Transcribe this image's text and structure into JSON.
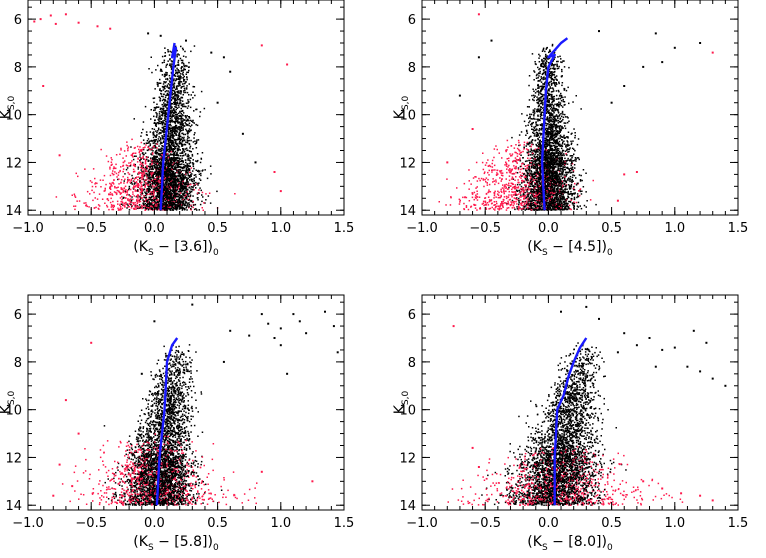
{
  "colors": {
    "giants": "#000000",
    "agb_candidates": "#ff1a4d",
    "isochrone": "#1a1aff"
  },
  "chart_data": [
    {
      "type": "scatter",
      "xlabel": {
        "open": "(K",
        "sub": "S",
        "middle": " − [3.6])",
        "close_sub": "0"
      },
      "ylabel": {
        "main": "K",
        "sub": "S,0"
      },
      "xlim": [
        -1.0,
        1.5
      ],
      "ylim": [
        14.2,
        5.2
      ],
      "xticks": [
        "−1.0",
        "−0.5",
        "0.0",
        "0.5",
        "1.0",
        "1.5"
      ],
      "yticks": [
        "6",
        "8",
        "10",
        "12",
        "14"
      ],
      "grid": false,
      "cloud": {
        "center_x": 0.12,
        "spread_x": 0.09,
        "tilt": 0.015,
        "top": 7.0,
        "bottom": 14.0
      },
      "red_cloud": {
        "center_x": -0.12,
        "spread_x": 0.2,
        "top": 11.0,
        "bottom": 14.0
      },
      "red_outliers": [
        {
          "x": -0.95,
          "y": 6.1
        },
        {
          "x": -0.9,
          "y": 6.0
        },
        {
          "x": -0.82,
          "y": 5.85
        },
        {
          "x": -0.78,
          "y": 6.2
        },
        {
          "x": -0.7,
          "y": 5.8
        },
        {
          "x": -0.6,
          "y": 6.15
        },
        {
          "x": -0.45,
          "y": 6.3
        },
        {
          "x": -0.35,
          "y": 6.4
        },
        {
          "x": 1.05,
          "y": 7.9
        },
        {
          "x": 0.85,
          "y": 7.1
        },
        {
          "x": -0.88,
          "y": 8.8
        },
        {
          "x": -0.75,
          "y": 11.7
        },
        {
          "x": 0.95,
          "y": 12.4
        },
        {
          "x": 1.0,
          "y": 13.2
        }
      ],
      "black_outliers": [
        {
          "x": -0.05,
          "y": 6.6
        },
        {
          "x": 0.05,
          "y": 6.7
        },
        {
          "x": 0.25,
          "y": 6.9
        },
        {
          "x": 0.45,
          "y": 7.4
        },
        {
          "x": 0.55,
          "y": 7.6
        },
        {
          "x": 0.6,
          "y": 8.2
        },
        {
          "x": 0.5,
          "y": 9.5
        },
        {
          "x": 0.7,
          "y": 10.8
        },
        {
          "x": 0.8,
          "y": 12.0
        }
      ],
      "isochrone": [
        {
          "x": 0.05,
          "y": 14.0
        },
        {
          "x": 0.06,
          "y": 13.0
        },
        {
          "x": 0.07,
          "y": 12.0
        },
        {
          "x": 0.09,
          "y": 11.0
        },
        {
          "x": 0.11,
          "y": 10.0
        },
        {
          "x": 0.13,
          "y": 9.0
        },
        {
          "x": 0.15,
          "y": 8.0
        },
        {
          "x": 0.17,
          "y": 7.2
        },
        {
          "x": 0.14,
          "y": 7.6
        },
        {
          "x": 0.16,
          "y": 7.0
        }
      ]
    },
    {
      "type": "scatter",
      "xlabel": {
        "open": "(K",
        "sub": "S",
        "middle": " − [4.5])",
        "close_sub": "0"
      },
      "ylabel": {
        "main": "K",
        "sub": "S,0"
      },
      "xlim": [
        -1.0,
        1.5
      ],
      "ylim": [
        14.2,
        5.2
      ],
      "xticks": [
        "−1.0",
        "−0.5",
        "0.0",
        "0.5",
        "1.0",
        "1.5"
      ],
      "yticks": [
        "6",
        "8",
        "10",
        "12",
        "14"
      ],
      "grid": false,
      "cloud": {
        "center_x": 0.0,
        "spread_x": 0.08,
        "tilt": 0.0,
        "top": 7.0,
        "bottom": 14.0
      },
      "red_cloud": {
        "center_x": -0.25,
        "spread_x": 0.2,
        "top": 11.0,
        "bottom": 14.0
      },
      "red_outliers": [
        {
          "x": -0.55,
          "y": 5.8
        },
        {
          "x": -0.6,
          "y": 10.6
        },
        {
          "x": 0.6,
          "y": 12.5
        },
        {
          "x": 0.7,
          "y": 12.4
        },
        {
          "x": 1.3,
          "y": 7.4
        },
        {
          "x": -0.8,
          "y": 12.0
        },
        {
          "x": 0.55,
          "y": 13.6
        }
      ],
      "black_outliers": [
        {
          "x": 0.85,
          "y": 6.6
        },
        {
          "x": 1.0,
          "y": 7.2
        },
        {
          "x": 1.2,
          "y": 7.0
        },
        {
          "x": 0.9,
          "y": 7.8
        },
        {
          "x": 0.75,
          "y": 8.0
        },
        {
          "x": 0.4,
          "y": 6.5
        },
        {
          "x": -0.55,
          "y": 7.6
        },
        {
          "x": -0.7,
          "y": 9.2
        },
        {
          "x": -0.45,
          "y": 6.9
        },
        {
          "x": 0.6,
          "y": 8.8
        },
        {
          "x": 0.5,
          "y": 9.5
        }
      ],
      "isochrone": [
        {
          "x": -0.03,
          "y": 14.0
        },
        {
          "x": -0.04,
          "y": 13.0
        },
        {
          "x": -0.05,
          "y": 12.0
        },
        {
          "x": -0.04,
          "y": 11.0
        },
        {
          "x": -0.03,
          "y": 10.0
        },
        {
          "x": -0.02,
          "y": 9.0
        },
        {
          "x": 0.0,
          "y": 8.0
        },
        {
          "x": 0.05,
          "y": 7.5
        },
        {
          "x": 0.0,
          "y": 7.6
        },
        {
          "x": 0.1,
          "y": 7.0
        },
        {
          "x": 0.15,
          "y": 6.8
        }
      ]
    },
    {
      "type": "scatter",
      "xlabel": {
        "open": "(K",
        "sub": "S",
        "middle": " − [5.8])",
        "close_sub": "0"
      },
      "ylabel": {
        "main": "K",
        "sub": "S,0"
      },
      "xlim": [
        -1.0,
        1.5
      ],
      "ylim": [
        14.2,
        5.2
      ],
      "xticks": [
        "−1.0",
        "−0.5",
        "0.0",
        "0.5",
        "1.0",
        "1.5"
      ],
      "yticks": [
        "6",
        "8",
        "10",
        "12",
        "14"
      ],
      "grid": false,
      "cloud": {
        "center_x": 0.08,
        "spread_x": 0.1,
        "tilt": 0.03,
        "top": 7.2,
        "bottom": 14.0
      },
      "red_cloud": {
        "center_x": 0.0,
        "spread_x": 0.25,
        "top": 11.0,
        "bottom": 14.0
      },
      "red_outliers": [
        {
          "x": -0.7,
          "y": 9.6
        },
        {
          "x": -0.6,
          "y": 11.0
        },
        {
          "x": -0.75,
          "y": 12.3
        },
        {
          "x": -0.65,
          "y": 13.2
        },
        {
          "x": -0.5,
          "y": 7.2
        },
        {
          "x": 0.85,
          "y": 12.6
        },
        {
          "x": 1.25,
          "y": 13.0
        },
        {
          "x": -0.8,
          "y": 13.6
        }
      ],
      "black_outliers": [
        {
          "x": 0.85,
          "y": 6.0
        },
        {
          "x": 0.9,
          "y": 6.4
        },
        {
          "x": 1.0,
          "y": 6.6
        },
        {
          "x": 1.1,
          "y": 6.0
        },
        {
          "x": 1.2,
          "y": 6.8
        },
        {
          "x": 1.35,
          "y": 5.9
        },
        {
          "x": 1.42,
          "y": 6.5
        },
        {
          "x": 1.45,
          "y": 7.6
        },
        {
          "x": 1.0,
          "y": 7.3
        },
        {
          "x": 0.75,
          "y": 6.9
        },
        {
          "x": 0.6,
          "y": 6.7
        },
        {
          "x": 0.55,
          "y": 8.0
        },
        {
          "x": 1.05,
          "y": 8.5
        },
        {
          "x": 0.3,
          "y": 5.6
        },
        {
          "x": 0.0,
          "y": 6.3
        },
        {
          "x": -0.1,
          "y": 8.5
        },
        {
          "x": 1.15,
          "y": 6.3
        },
        {
          "x": 0.95,
          "y": 7.0
        }
      ],
      "isochrone": [
        {
          "x": 0.02,
          "y": 14.0
        },
        {
          "x": 0.03,
          "y": 13.0
        },
        {
          "x": 0.04,
          "y": 12.0
        },
        {
          "x": 0.06,
          "y": 11.0
        },
        {
          "x": 0.08,
          "y": 10.0
        },
        {
          "x": 0.09,
          "y": 9.0
        },
        {
          "x": 0.1,
          "y": 8.0
        },
        {
          "x": 0.14,
          "y": 7.3
        },
        {
          "x": 0.18,
          "y": 7.0
        }
      ]
    },
    {
      "type": "scatter",
      "xlabel": {
        "open": "(K",
        "sub": "S",
        "middle": " − [8.0])",
        "close_sub": "0"
      },
      "ylabel": {
        "main": "K",
        "sub": "S,0"
      },
      "xlim": [
        -1.0,
        1.5
      ],
      "ylim": [
        14.2,
        5.2
      ],
      "xticks": [
        "−1.0",
        "−0.5",
        "0.0",
        "0.5",
        "1.0",
        "1.5"
      ],
      "yticks": [
        "6",
        "8",
        "10",
        "12",
        "14"
      ],
      "grid": false,
      "cloud": {
        "center_x": 0.12,
        "spread_x": 0.12,
        "tilt": 0.05,
        "top": 7.2,
        "bottom": 14.0
      },
      "red_cloud": {
        "center_x": 0.1,
        "spread_x": 0.3,
        "top": 11.5,
        "bottom": 14.0
      },
      "red_outliers": [
        {
          "x": -0.75,
          "y": 6.5
        },
        {
          "x": -0.6,
          "y": 11.6
        },
        {
          "x": -0.55,
          "y": 12.4
        },
        {
          "x": 0.9,
          "y": 13.3
        },
        {
          "x": 1.05,
          "y": 13.5
        },
        {
          "x": 1.2,
          "y": 13.6
        },
        {
          "x": 1.3,
          "y": 13.8
        },
        {
          "x": 0.75,
          "y": 13.0
        }
      ],
      "black_outliers": [
        {
          "x": 0.6,
          "y": 6.8
        },
        {
          "x": 0.7,
          "y": 7.3
        },
        {
          "x": 0.8,
          "y": 7.0
        },
        {
          "x": 0.9,
          "y": 7.5
        },
        {
          "x": 1.0,
          "y": 7.4
        },
        {
          "x": 1.1,
          "y": 8.2
        },
        {
          "x": 1.2,
          "y": 8.4
        },
        {
          "x": 1.25,
          "y": 7.2
        },
        {
          "x": 1.3,
          "y": 8.7
        },
        {
          "x": 0.85,
          "y": 8.2
        },
        {
          "x": 0.55,
          "y": 7.6
        },
        {
          "x": 0.4,
          "y": 6.2
        },
        {
          "x": 0.3,
          "y": 5.7
        },
        {
          "x": 0.1,
          "y": 5.9
        },
        {
          "x": 1.15,
          "y": 6.7
        },
        {
          "x": 1.4,
          "y": 9.0
        }
      ],
      "isochrone": [
        {
          "x": 0.05,
          "y": 14.0
        },
        {
          "x": 0.05,
          "y": 13.0
        },
        {
          "x": 0.05,
          "y": 12.0
        },
        {
          "x": 0.06,
          "y": 11.0
        },
        {
          "x": 0.07,
          "y": 10.0
        },
        {
          "x": 0.12,
          "y": 9.4
        },
        {
          "x": 0.16,
          "y": 8.6
        },
        {
          "x": 0.2,
          "y": 8.0
        },
        {
          "x": 0.25,
          "y": 7.4
        },
        {
          "x": 0.3,
          "y": 7.0
        }
      ]
    }
  ]
}
